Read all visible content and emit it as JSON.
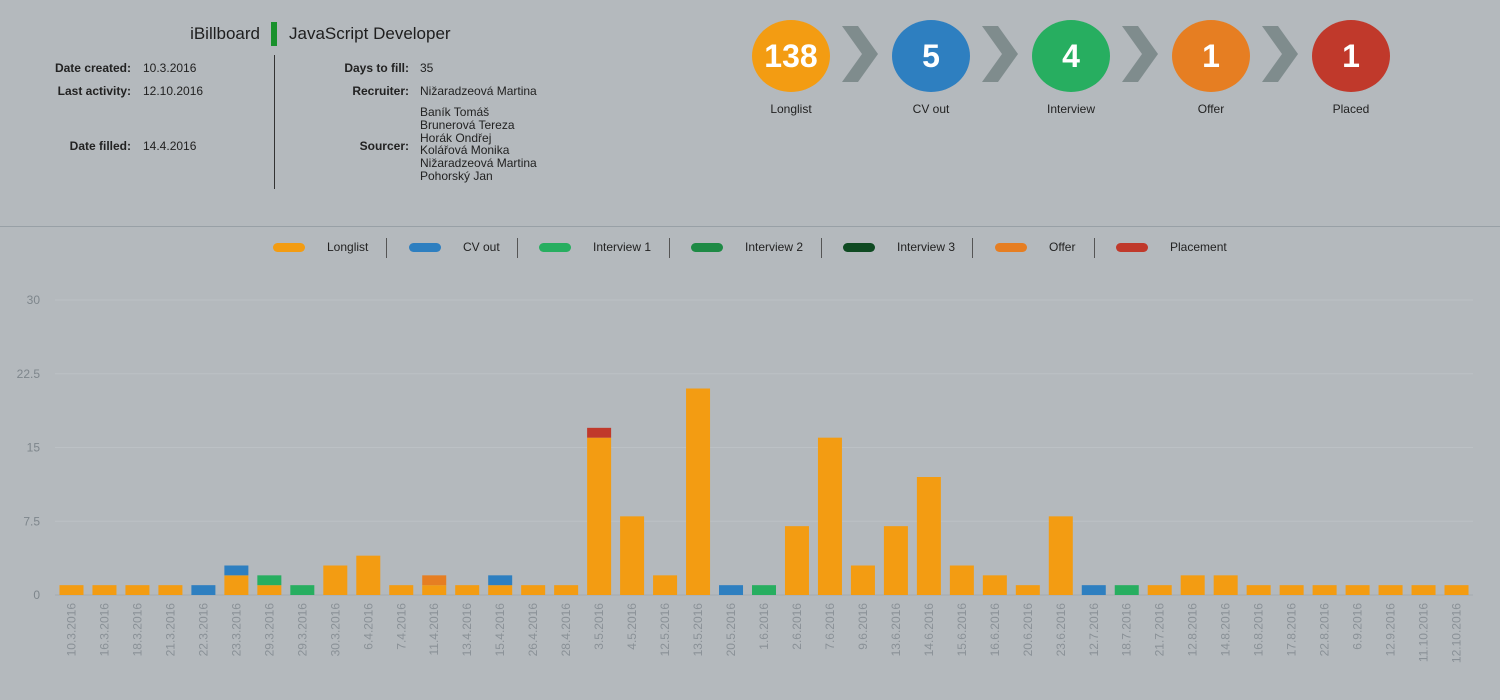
{
  "header": {
    "company": "iBillboard",
    "position": "JavaScript Developer",
    "accent_color": "#19912c",
    "date_created_label": "Date created:",
    "date_created": "10.3.2016",
    "last_activity_label": "Last activity:",
    "last_activity": "12.10.2016",
    "date_filled_label": "Date filled:",
    "date_filled": "14.4.2016",
    "days_to_fill_label": "Days to fill:",
    "days_to_fill": "35",
    "recruiter_label": "Recruiter:",
    "recruiter": "Nižaradzeová Martina",
    "sourcer_label": "Sourcer:",
    "sourcers": [
      "Baník Tomáš",
      "Brunerová Tereza",
      "Horák Ondřej",
      "Kolářová Monika",
      "Nižaradzeová Martina",
      "Pohorský Jan"
    ]
  },
  "pipeline": [
    {
      "label": "Longlist",
      "count": "138",
      "color": "#f39c12"
    },
    {
      "label": "CV out",
      "count": "5",
      "color": "#2e7fc0"
    },
    {
      "label": "Interview",
      "count": "4",
      "color": "#27ae60"
    },
    {
      "label": "Offer",
      "count": "1",
      "color": "#e67e22"
    },
    {
      "label": "Placed",
      "count": "1",
      "color": "#c0392b"
    }
  ],
  "chart_data": {
    "type": "bar",
    "stacked": true,
    "ylim": [
      0,
      30
    ],
    "yticks": [
      "0",
      "7.5",
      "15",
      "22.5",
      "30"
    ],
    "grid": true,
    "legend_position": "top",
    "categories": [
      "10.3.2016",
      "16.3.2016",
      "18.3.2016",
      "21.3.2016",
      "22.3.2016",
      "23.3.2016",
      "29.3.2016",
      "29.3.2016",
      "30.3.2016",
      "6.4.2016",
      "7.4.2016",
      "11.4.2016",
      "13.4.2016",
      "15.4.2016",
      "26.4.2016",
      "28.4.2016",
      "3.5.2016",
      "4.5.2016",
      "12.5.2016",
      "13.5.2016",
      "20.5.2016",
      "1.6.2016",
      "2.6.2016",
      "7.6.2016",
      "9.6.2016",
      "13.6.2016",
      "14.6.2016",
      "15.6.2016",
      "16.6.2016",
      "20.6.2016",
      "23.6.2016",
      "12.7.2016",
      "18.7.2016",
      "21.7.2016",
      "12.8.2016",
      "14.8.2016",
      "16.8.2016",
      "17.8.2016",
      "22.8.2016",
      "6.9.2016",
      "12.9.2016",
      "11.10.2016",
      "12.10.2016"
    ],
    "series": [
      {
        "name": "Longlist",
        "color": "#f39c12",
        "values": [
          1,
          1,
          1,
          1,
          0,
          2,
          1,
          0,
          3,
          4,
          1,
          1,
          1,
          1,
          1,
          1,
          16,
          8,
          2,
          21,
          0,
          0,
          7,
          16,
          3,
          7,
          12,
          3,
          2,
          1,
          8,
          0,
          0,
          1,
          2,
          2,
          1,
          1,
          1,
          1,
          1,
          1,
          1
        ]
      },
      {
        "name": "CV out",
        "color": "#2e7fc0",
        "values": [
          0,
          0,
          0,
          0,
          1,
          1,
          0,
          0,
          0,
          0,
          0,
          0,
          0,
          1,
          0,
          0,
          0,
          0,
          0,
          0,
          1,
          0,
          0,
          0,
          0,
          0,
          0,
          0,
          0,
          0,
          0,
          1,
          0,
          0,
          0,
          0,
          0,
          0,
          0,
          0,
          0,
          0,
          0
        ]
      },
      {
        "name": "Interview 1",
        "color": "#27ae60",
        "values": [
          0,
          0,
          0,
          0,
          0,
          0,
          1,
          1,
          0,
          0,
          0,
          0,
          0,
          0,
          0,
          0,
          0,
          0,
          0,
          0,
          0,
          1,
          0,
          0,
          0,
          0,
          0,
          0,
          0,
          0,
          0,
          0,
          1,
          0,
          0,
          0,
          0,
          0,
          0,
          0,
          0,
          0,
          0
        ]
      },
      {
        "name": "Interview 2",
        "color": "#1e8a45",
        "values": [
          0,
          0,
          0,
          0,
          0,
          0,
          0,
          0,
          0,
          0,
          0,
          0,
          0,
          0,
          0,
          0,
          0,
          0,
          0,
          0,
          0,
          0,
          0,
          0,
          0,
          0,
          0,
          0,
          0,
          0,
          0,
          0,
          0,
          0,
          0,
          0,
          0,
          0,
          0,
          0,
          0,
          0,
          0
        ]
      },
      {
        "name": "Interview 3",
        "color": "#0f4a22",
        "values": [
          0,
          0,
          0,
          0,
          0,
          0,
          0,
          0,
          0,
          0,
          0,
          0,
          0,
          0,
          0,
          0,
          0,
          0,
          0,
          0,
          0,
          0,
          0,
          0,
          0,
          0,
          0,
          0,
          0,
          0,
          0,
          0,
          0,
          0,
          0,
          0,
          0,
          0,
          0,
          0,
          0,
          0,
          0
        ]
      },
      {
        "name": "Offer",
        "color": "#e67e22",
        "values": [
          0,
          0,
          0,
          0,
          0,
          0,
          0,
          0,
          0,
          0,
          0,
          1,
          0,
          0,
          0,
          0,
          0,
          0,
          0,
          0,
          0,
          0,
          0,
          0,
          0,
          0,
          0,
          0,
          0,
          0,
          0,
          0,
          0,
          0,
          0,
          0,
          0,
          0,
          0,
          0,
          0,
          0,
          0
        ]
      },
      {
        "name": "Placement",
        "color": "#c0392b",
        "values": [
          0,
          0,
          0,
          0,
          0,
          0,
          0,
          0,
          0,
          0,
          0,
          0,
          0,
          0,
          0,
          0,
          1,
          0,
          0,
          0,
          0,
          0,
          0,
          0,
          0,
          0,
          0,
          0,
          0,
          0,
          0,
          0,
          0,
          0,
          0,
          0,
          0,
          0,
          0,
          0,
          0,
          0,
          0
        ]
      }
    ]
  }
}
